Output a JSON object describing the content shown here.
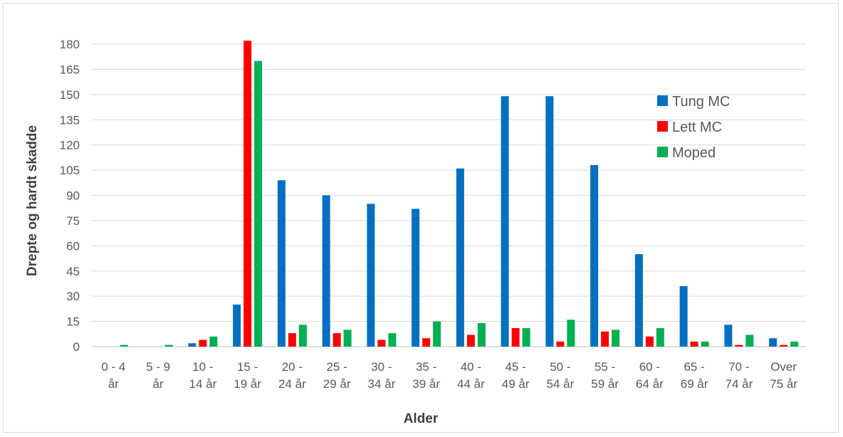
{
  "chart_data": {
    "type": "bar",
    "title": "",
    "xlabel": "Alder",
    "ylabel": "Drepte og hardt skadde",
    "ylim": [
      0,
      180
    ],
    "yticks": [
      0,
      15,
      30,
      45,
      60,
      75,
      90,
      105,
      120,
      135,
      150,
      165,
      180
    ],
    "grid": true,
    "legend_position": "top-right",
    "categories": [
      [
        "0 - 4",
        "år"
      ],
      [
        "5 - 9",
        "år"
      ],
      [
        "10 -",
        "14 år"
      ],
      [
        "15 -",
        "19 år"
      ],
      [
        "20 -",
        "24 år"
      ],
      [
        "25 -",
        "29 år"
      ],
      [
        "30 -",
        "34 år"
      ],
      [
        "35 -",
        "39 år"
      ],
      [
        "40 -",
        "44 år"
      ],
      [
        "45 -",
        "49 år"
      ],
      [
        "50 -",
        "54 år"
      ],
      [
        "55 -",
        "59 år"
      ],
      [
        "60 -",
        "64 år"
      ],
      [
        "65 -",
        "69 år"
      ],
      [
        "70 -",
        "74 år"
      ],
      [
        "Over",
        "75 år"
      ]
    ],
    "series": [
      {
        "name": "Tung MC",
        "color": "#0070C0",
        "values": [
          0,
          0,
          2,
          25,
          99,
          90,
          85,
          82,
          106,
          149,
          149,
          108,
          55,
          36,
          13,
          5
        ]
      },
      {
        "name": "Lett MC",
        "color": "#FF0000",
        "values": [
          0,
          0,
          4,
          182,
          8,
          8,
          4,
          5,
          7,
          11,
          3,
          9,
          6,
          3,
          1,
          1
        ]
      },
      {
        "name": "Moped",
        "color": "#00B050",
        "values": [
          1,
          1,
          6,
          170,
          13,
          10,
          8,
          15,
          14,
          11,
          16,
          10,
          11,
          3,
          7,
          3
        ]
      }
    ]
  }
}
